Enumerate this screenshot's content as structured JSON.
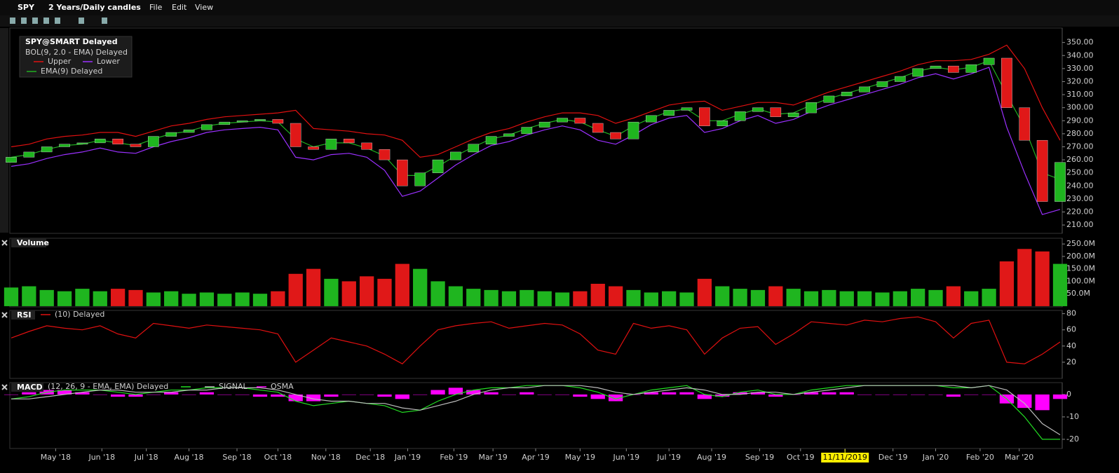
{
  "toolbar": {
    "symbol": "SPY",
    "period": "2 Years/Daily candles",
    "menu": [
      "File",
      "Edit",
      "View"
    ]
  },
  "chart_data": [
    {
      "type": "candlestick",
      "title": "SPY@SMART Delayed",
      "subtitle": "BOL(9, 2.0 - EMA) Delayed",
      "open": [
        258,
        262,
        266,
        270,
        272,
        273,
        276,
        272,
        270,
        278,
        281,
        283,
        287,
        289,
        290,
        291,
        288,
        270,
        268,
        276,
        273,
        268,
        260,
        240,
        250,
        260,
        266,
        272,
        278,
        280,
        285,
        289,
        292,
        288,
        281,
        276,
        289,
        294,
        298,
        300,
        286,
        290,
        297,
        300,
        293,
        296,
        304,
        309,
        312,
        316,
        320,
        324,
        330,
        332,
        327,
        333,
        338,
        300,
        275,
        228
      ],
      "close": [
        262,
        266,
        270,
        272,
        273,
        276,
        272,
        270,
        278,
        281,
        283,
        287,
        289,
        290,
        291,
        288,
        270,
        268,
        276,
        273,
        268,
        260,
        240,
        250,
        260,
        266,
        272,
        278,
        280,
        285,
        289,
        292,
        288,
        281,
        276,
        289,
        294,
        298,
        300,
        286,
        290,
        297,
        300,
        293,
        296,
        304,
        309,
        312,
        316,
        320,
        324,
        330,
        332,
        327,
        333,
        338,
        300,
        275,
        228,
        258
      ],
      "up_color": "#1fb51f",
      "down_color": "#e01818",
      "series": [
        {
          "name": "Upper",
          "color": "#e01010",
          "values": [
            270,
            272,
            276,
            278,
            279,
            281,
            281,
            278,
            282,
            286,
            288,
            291,
            293,
            294,
            295,
            296,
            298,
            284,
            283,
            282,
            280,
            279,
            275,
            262,
            264,
            270,
            276,
            281,
            284,
            289,
            293,
            296,
            296,
            294,
            288,
            292,
            297,
            302,
            304,
            305,
            298,
            301,
            304,
            304,
            302,
            307,
            312,
            316,
            320,
            324,
            328,
            333,
            336,
            336,
            337,
            341,
            348,
            330,
            300,
            275
          ]
        },
        {
          "name": "Lower",
          "color": "#9b30ff",
          "values": [
            255,
            257,
            261,
            264,
            266,
            269,
            266,
            265,
            270,
            274,
            277,
            281,
            283,
            284,
            285,
            283,
            262,
            260,
            264,
            265,
            262,
            252,
            232,
            236,
            246,
            256,
            264,
            271,
            274,
            279,
            283,
            286,
            283,
            275,
            272,
            279,
            287,
            292,
            294,
            281,
            284,
            290,
            294,
            288,
            291,
            297,
            302,
            306,
            310,
            314,
            318,
            323,
            326,
            322,
            326,
            331,
            285,
            250,
            218,
            222
          ]
        },
        {
          "name": "EMA(9) Delayed",
          "color": "#20b020",
          "values": [
            262,
            264,
            268,
            271,
            272,
            275,
            273,
            271,
            276,
            280,
            282,
            286,
            288,
            289,
            290,
            289,
            276,
            270,
            273,
            273,
            269,
            263,
            248,
            248,
            255,
            263,
            270,
            276,
            279,
            284,
            288,
            291,
            289,
            283,
            278,
            286,
            292,
            297,
            299,
            290,
            290,
            295,
            299,
            295,
            296,
            302,
            307,
            311,
            315,
            319,
            323,
            328,
            331,
            329,
            331,
            336,
            310,
            285,
            250,
            245
          ]
        }
      ],
      "ylim": [
        203.6,
        361.1
      ],
      "yticks": [
        {
          "value": 210,
          "label": "210.00"
        },
        {
          "value": 220,
          "label": "220.00"
        },
        {
          "value": 230,
          "label": "230.00"
        },
        {
          "value": 240,
          "label": "240.00"
        },
        {
          "value": 250,
          "label": "250.00"
        },
        {
          "value": 260,
          "label": "260.00"
        },
        {
          "value": 270,
          "label": "270.00"
        },
        {
          "value": 280,
          "label": "280.00"
        },
        {
          "value": 290,
          "label": "290.00"
        },
        {
          "value": 300,
          "label": "300.00"
        },
        {
          "value": 310,
          "label": "310.00"
        },
        {
          "value": 320,
          "label": "320.00"
        },
        {
          "value": 330,
          "label": "330.00"
        },
        {
          "value": 340,
          "label": "340.00"
        },
        {
          "value": 350,
          "label": "350.00"
        }
      ]
    },
    {
      "type": "bar",
      "title": "Volume",
      "values": [
        75,
        80,
        65,
        60,
        70,
        60,
        70,
        65,
        55,
        60,
        50,
        55,
        50,
        55,
        50,
        60,
        130,
        150,
        110,
        100,
        120,
        110,
        170,
        150,
        100,
        80,
        70,
        65,
        60,
        65,
        60,
        55,
        60,
        90,
        80,
        65,
        55,
        60,
        55,
        110,
        80,
        70,
        65,
        80,
        70,
        60,
        65,
        60,
        60,
        55,
        60,
        70,
        65,
        80,
        60,
        70,
        180,
        230,
        220,
        170
      ],
      "ylim": [
        -3,
        273
      ],
      "yticks": [
        {
          "value": 50,
          "label": "50.0M"
        },
        {
          "value": 100,
          "label": "100.0M"
        },
        {
          "value": 150,
          "label": "150.0M"
        },
        {
          "value": 200,
          "label": "200.0M"
        },
        {
          "value": 250,
          "label": "250.0M"
        }
      ]
    },
    {
      "type": "line",
      "title": "RSI",
      "series": [
        {
          "name": "(10) Delayed",
          "color": "#e01010",
          "values": [
            50,
            58,
            65,
            62,
            60,
            65,
            55,
            50,
            68,
            65,
            62,
            66,
            64,
            62,
            60,
            55,
            20,
            35,
            50,
            45,
            40,
            30,
            18,
            40,
            60,
            65,
            68,
            70,
            62,
            65,
            68,
            66,
            55,
            35,
            30,
            68,
            62,
            65,
            60,
            30,
            50,
            62,
            64,
            42,
            55,
            70,
            68,
            66,
            72,
            70,
            74,
            76,
            70,
            50,
            68,
            72,
            20,
            18,
            30,
            45
          ]
        }
      ],
      "ylim": [
        0,
        84
      ],
      "yticks": [
        20,
        40,
        60,
        80
      ]
    },
    {
      "type": "macd",
      "title": "MACD",
      "series": [
        {
          "name": "(12, 26, 9 - EMA, EMA) Delayed",
          "color": "#22dd22",
          "values": [
            -2,
            -1,
            1,
            2,
            2,
            2,
            1,
            0,
            1,
            2,
            2,
            3,
            3,
            3,
            2,
            1,
            -3,
            -5,
            -4,
            -3,
            -4,
            -5,
            -8,
            -7,
            -3,
            0,
            2,
            3,
            3,
            4,
            4,
            4,
            3,
            1,
            -2,
            0,
            2,
            3,
            4,
            0,
            -1,
            1,
            2,
            0,
            0,
            2,
            3,
            4,
            4,
            4,
            4,
            4,
            4,
            3,
            3,
            4,
            -2,
            -10,
            -20,
            -20
          ]
        },
        {
          "name": "SIGNAL",
          "color": "#bbbbbb",
          "values": [
            -2,
            -2,
            -1,
            0,
            1,
            2,
            2,
            1,
            1,
            1,
            2,
            2,
            3,
            3,
            3,
            2,
            0,
            -2,
            -3,
            -3,
            -4,
            -4,
            -6,
            -7,
            -5,
            -3,
            0,
            2,
            3,
            3,
            4,
            4,
            4,
            3,
            1,
            0,
            1,
            2,
            3,
            2,
            0,
            0,
            1,
            1,
            0,
            1,
            2,
            3,
            4,
            4,
            4,
            4,
            4,
            4,
            3,
            4,
            2,
            -4,
            -13,
            -18
          ]
        },
        {
          "name": "OSMA",
          "color": "#ff00ff",
          "type": "bar",
          "values": [
            0,
            1,
            2,
            2,
            1,
            0,
            -1,
            -1,
            0,
            1,
            0,
            1,
            0,
            0,
            -1,
            -1,
            -3,
            -3,
            -1,
            0,
            0,
            -1,
            -2,
            0,
            2,
            3,
            2,
            1,
            0,
            1,
            0,
            0,
            -1,
            -2,
            -3,
            0,
            1,
            1,
            1,
            -2,
            -1,
            1,
            1,
            -1,
            0,
            1,
            1,
            1,
            0,
            0,
            0,
            0,
            0,
            -1,
            0,
            0,
            -4,
            -6,
            -7,
            -2
          ]
        }
      ],
      "ylim": [
        -24.1,
        5.3
      ],
      "yticks": [
        0,
        -10,
        -20
      ],
      "xlim": [
        0,
        59
      ],
      "xticks": [
        {
          "value": 2.5,
          "label": "May '18"
        },
        {
          "value": 5.1,
          "label": "Jun '18"
        },
        {
          "value": 7.6,
          "label": "Jul '18"
        },
        {
          "value": 10,
          "label": "Aug '18"
        },
        {
          "value": 12.7,
          "label": "Sep '18"
        },
        {
          "value": 15,
          "label": "Oct '18"
        },
        {
          "value": 17.7,
          "label": "Nov '18"
        },
        {
          "value": 20.2,
          "label": "Dec '18"
        },
        {
          "value": 22.3,
          "label": "Jan '19"
        },
        {
          "value": 24.9,
          "label": "Feb '19"
        },
        {
          "value": 27.1,
          "label": "Mar '19"
        },
        {
          "value": 29.5,
          "label": "Apr '19"
        },
        {
          "value": 32,
          "label": "May '19"
        },
        {
          "value": 34.6,
          "label": "Jun '19"
        },
        {
          "value": 37,
          "label": "Jul '19"
        },
        {
          "value": 39.4,
          "label": "Aug '19"
        },
        {
          "value": 42.1,
          "label": "Sep '19"
        },
        {
          "value": 44.4,
          "label": "Oct '19"
        },
        {
          "value": 46.9,
          "label": "Nov '19"
        },
        {
          "value": 49.6,
          "label": "Dec '19"
        },
        {
          "value": 52,
          "label": "Jan '20"
        },
        {
          "value": 54.5,
          "label": "Feb '20"
        },
        {
          "value": 56.7,
          "label": "Mar '20"
        }
      ],
      "crosshair": {
        "value": 46.9,
        "label": "11/11/2019"
      }
    }
  ]
}
